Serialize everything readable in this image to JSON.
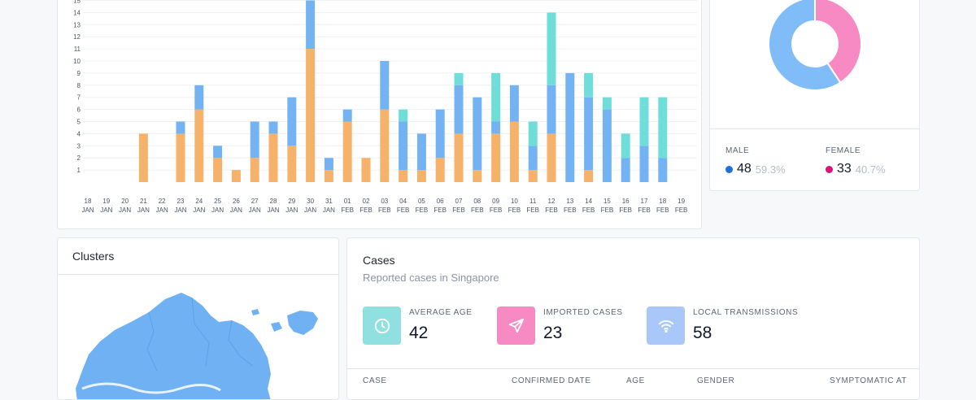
{
  "colors": {
    "imported": "#f6b26b",
    "local": "#74b3f3",
    "unlinked": "#6fded8",
    "male": "#80bcf7",
    "female": "#f78ac2",
    "male_dot": "#1f6fd9",
    "female_dot": "#e0107a",
    "map": "#6fb1f3"
  },
  "chart_data": [
    {
      "type": "bar",
      "stacked": true,
      "categories": [
        "18 JAN",
        "19 JAN",
        "20 JAN",
        "21 JAN",
        "22 JAN",
        "23 JAN",
        "24 JAN",
        "25 JAN",
        "26 JAN",
        "27 JAN",
        "28 JAN",
        "29 JAN",
        "30 JAN",
        "31 JAN",
        "01 FEB",
        "02 FEB",
        "03 FEB",
        "04 FEB",
        "05 FEB",
        "06 FEB",
        "07 FEB",
        "08 FEB",
        "09 FEB",
        "10 FEB",
        "11 FEB",
        "12 FEB",
        "13 FEB",
        "14 FEB",
        "15 FEB",
        "16 FEB",
        "17 FEB",
        "18 FEB",
        "19 FEB"
      ],
      "series": [
        {
          "values": [
            0,
            0,
            0,
            4,
            0,
            4,
            6,
            2,
            1,
            2,
            4,
            3,
            11,
            1,
            5,
            2,
            6,
            1,
            1,
            2,
            4,
            1,
            4,
            5,
            1,
            4,
            0,
            1,
            0,
            0,
            0,
            0,
            0
          ]
        },
        {
          "values": [
            0,
            0,
            0,
            0,
            0,
            1,
            2,
            1,
            0,
            3,
            1,
            4,
            4,
            1,
            1,
            0,
            4,
            4,
            3,
            4,
            4,
            6,
            1,
            3,
            2,
            4,
            9,
            6,
            6,
            2,
            3,
            2,
            0
          ]
        },
        {
          "values": [
            0,
            0,
            0,
            0,
            0,
            0,
            0,
            0,
            0,
            0,
            0,
            0,
            0,
            0,
            0,
            0,
            0,
            1,
            0,
            0,
            1,
            0,
            4,
            0,
            2,
            6,
            0,
            2,
            1,
            2,
            4,
            5,
            0
          ]
        }
      ],
      "ylim": [
        0,
        15
      ],
      "yticks": [
        1,
        2,
        3,
        4,
        5,
        6,
        7,
        8,
        9,
        10,
        11,
        12,
        13,
        14,
        15
      ]
    },
    {
      "type": "pie",
      "donut": true,
      "series": [
        {
          "name": "MALE",
          "value": 48,
          "percent": "59.3%"
        },
        {
          "name": "FEMALE",
          "value": 33,
          "percent": "40.7%"
        }
      ]
    }
  ],
  "gender": {
    "male_label": "MALE",
    "male_value": "48",
    "male_pct": "59.3%",
    "female_label": "FEMALE",
    "female_value": "33",
    "female_pct": "40.7%"
  },
  "clusters": {
    "title": "Clusters"
  },
  "cases": {
    "title": "Cases",
    "subtitle": "Reported cases in Singapore",
    "stats": [
      {
        "label": "AVERAGE AGE",
        "value": "42",
        "icon": "clock-icon",
        "color": "#8fe0df"
      },
      {
        "label": "IMPORTED CASES",
        "value": "23",
        "icon": "send-icon",
        "color": "#f78ac2"
      },
      {
        "label": "LOCAL TRANSMISSIONS",
        "value": "58",
        "icon": "wifi-icon",
        "color": "#a9c8f9"
      }
    ],
    "columns": [
      "CASE",
      "CONFIRMED DATE",
      "AGE",
      "GENDER",
      "SYMPTOMATIC AT"
    ]
  }
}
